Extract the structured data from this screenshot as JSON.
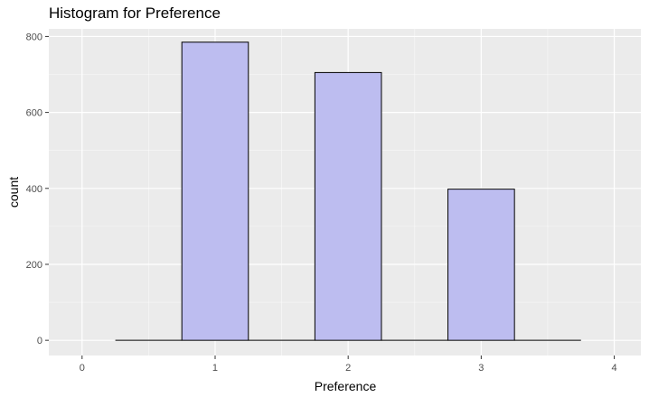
{
  "chart_data": {
    "type": "bar",
    "title": "Histogram for Preference",
    "xlabel": "Preference",
    "ylabel": "count",
    "x_ticks": [
      0,
      1,
      2,
      3,
      4
    ],
    "y_ticks": [
      0,
      200,
      400,
      600,
      800
    ],
    "xlim": [
      -0.25,
      4.2
    ],
    "ylim": [
      -40,
      820
    ],
    "bin_width": 0.5,
    "bins": [
      {
        "x": 0.5,
        "value": 0
      },
      {
        "x": 1,
        "value": 785
      },
      {
        "x": 1.5,
        "value": 0
      },
      {
        "x": 2,
        "value": 705
      },
      {
        "x": 2.5,
        "value": 0
      },
      {
        "x": 3,
        "value": 398
      },
      {
        "x": 3.5,
        "value": 0
      }
    ],
    "colors": {
      "panel": "#EBEBEB",
      "grid": "#FFFFFF",
      "bar_fill": "#BDBDF0",
      "bar_stroke": "#000000",
      "tick_text": "#4D4D4D"
    },
    "grid": true
  }
}
